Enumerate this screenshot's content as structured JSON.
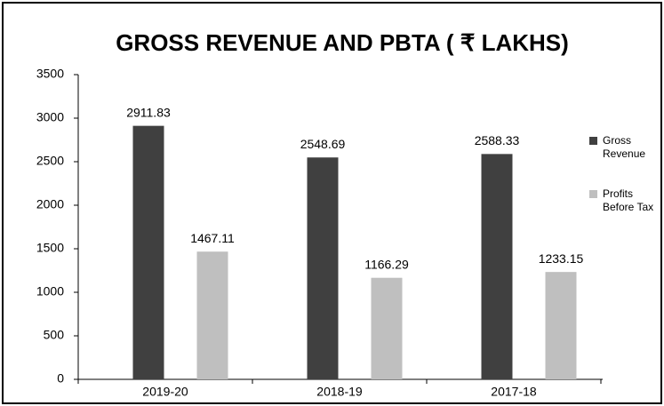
{
  "chart_data": {
    "type": "bar",
    "title": "GROSS REVENUE AND PBTA ( ₹ LAKHS)",
    "categories": [
      "2019-20",
      "2018-19",
      "2017-18"
    ],
    "series": [
      {
        "name": "Gross Revenue",
        "color": "#404040",
        "values": [
          2911.83,
          2548.69,
          2588.33
        ]
      },
      {
        "name": "Profits Before Tax",
        "color": "#bfbfbf",
        "values": [
          1467.11,
          1166.29,
          1233.15
        ]
      }
    ],
    "ylim": [
      0,
      3500
    ],
    "yticks": [
      0,
      500,
      1000,
      1500,
      2000,
      2500,
      3000,
      3500
    ],
    "grid": false,
    "legend": "right"
  }
}
